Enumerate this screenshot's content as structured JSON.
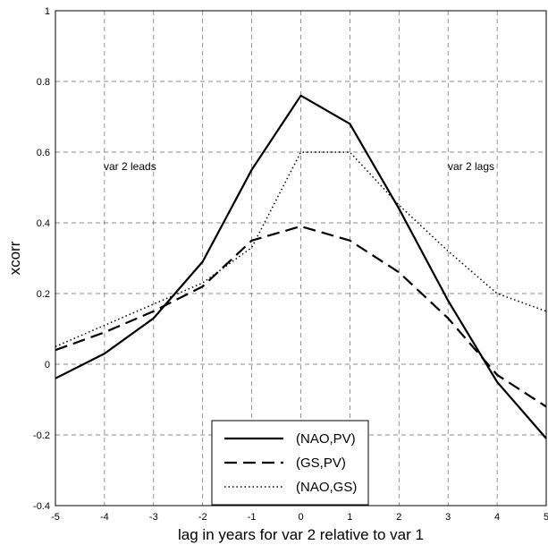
{
  "chart_data": {
    "type": "line",
    "title": "",
    "xlabel": "lag in years for var 2 relative to var 1",
    "ylabel": "xcorr",
    "xlim": [
      -5,
      5
    ],
    "ylim": [
      -0.4,
      1
    ],
    "xticks": [
      "-5",
      "-4",
      "-3",
      "-2",
      "-1",
      "0",
      "1",
      "2",
      "3",
      "4",
      "5"
    ],
    "yticks": [
      "-0.4",
      "-0.2",
      "0",
      "0.2",
      "0.4",
      "0.6",
      "0.8",
      "1"
    ],
    "grid": true,
    "legend_position": "lower-center",
    "x": [
      -5,
      -4,
      -3,
      -2,
      -1,
      0,
      1,
      2,
      3,
      4,
      5
    ],
    "series": [
      {
        "name": "(NAO,PV)",
        "style": "solid",
        "values": [
          -0.04,
          0.03,
          0.13,
          0.29,
          0.55,
          0.76,
          0.68,
          0.44,
          0.18,
          -0.05,
          -0.21
        ]
      },
      {
        "name": "(GS,PV)",
        "style": "dashed",
        "values": [
          0.04,
          0.09,
          0.15,
          0.22,
          0.35,
          0.39,
          0.35,
          0.26,
          0.13,
          -0.03,
          -0.12
        ]
      },
      {
        "name": "(NAO,GS)",
        "style": "dotted",
        "values": [
          0.05,
          0.11,
          0.17,
          0.23,
          0.33,
          0.6,
          0.6,
          0.45,
          0.32,
          0.2,
          0.15
        ]
      }
    ],
    "annotations": [
      "var 2 leads",
      "var 2 lags"
    ]
  }
}
